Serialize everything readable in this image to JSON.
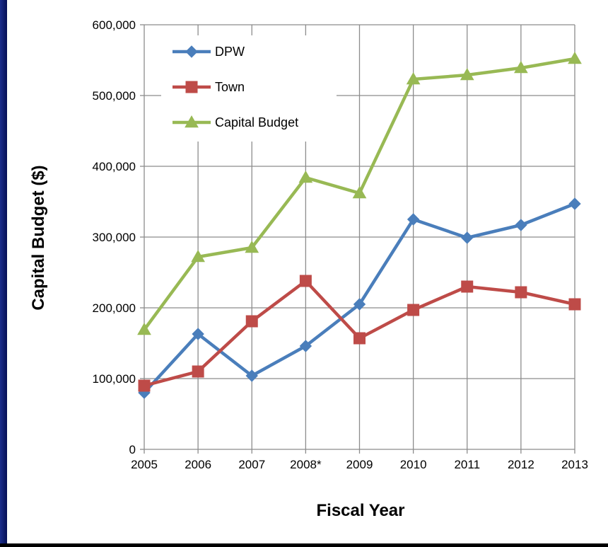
{
  "chart_data": {
    "type": "line",
    "title": "",
    "xlabel": "Fiscal Year",
    "ylabel": "Capital Budget ($)",
    "categories": [
      "2005",
      "2006",
      "2007",
      "2008*",
      "2009",
      "2010",
      "2011",
      "2012",
      "2013"
    ],
    "ylim": [
      0,
      600000
    ],
    "yticks": [
      0,
      100000,
      200000,
      300000,
      400000,
      500000,
      600000
    ],
    "ytick_labels": [
      "0",
      "100,000",
      "200,000",
      "300,000",
      "400,000",
      "500,000",
      "600,000"
    ],
    "grid": true,
    "legend": "top-left",
    "series": [
      {
        "name": "DPW",
        "color": "#4a7ebb",
        "marker": "diamond",
        "values": [
          80000,
          163000,
          104000,
          146000,
          205000,
          325000,
          299000,
          317000,
          347000
        ]
      },
      {
        "name": "Town",
        "color": "#be4b48",
        "marker": "square",
        "values": [
          90000,
          110000,
          181000,
          238000,
          157000,
          197000,
          230000,
          222000,
          205000
        ]
      },
      {
        "name": "Capital Budget",
        "color": "#98b954",
        "marker": "triangle",
        "values": [
          169000,
          272000,
          285000,
          384000,
          362000,
          523000,
          529000,
          539000,
          552000
        ]
      }
    ]
  }
}
